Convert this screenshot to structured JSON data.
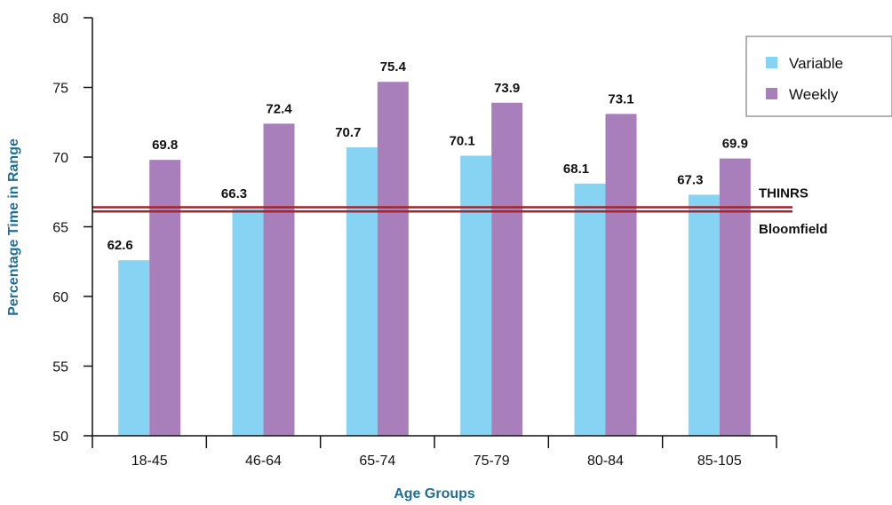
{
  "chart_data": {
    "type": "bar",
    "categories": [
      "18-45",
      "46-64",
      "65-74",
      "75-79",
      "80-84",
      "85-105"
    ],
    "series": [
      {
        "name": "Variable",
        "values": [
          62.6,
          66.3,
          70.7,
          70.1,
          68.1,
          67.3
        ],
        "color": "#87d3f3"
      },
      {
        "name": "Weekly",
        "values": [
          69.8,
          72.4,
          75.4,
          73.9,
          73.1,
          69.9
        ],
        "color": "#a87fba"
      }
    ],
    "data_labels": {
      "Variable": [
        "62.6",
        "66.3",
        "70.7",
        "70.1",
        "68.1",
        "67.3"
      ],
      "Weekly": [
        "69.8",
        "72.4",
        "75.4",
        "73.9",
        "73.1",
        "69.9"
      ]
    },
    "xlabel": "Age Groups",
    "ylabel": "Percentage Time in Range",
    "ylim": [
      50,
      80
    ],
    "yticks": [
      50,
      55,
      60,
      65,
      70,
      75,
      80
    ],
    "ytick_labels": [
      "50",
      "55",
      "60",
      "65",
      "70",
      "75",
      "80"
    ],
    "reference_lines": [
      {
        "label": "THINRS",
        "value": 66.4,
        "color": "#a3262a"
      },
      {
        "label": "Bloomfield",
        "value": 66.1,
        "color": "#a3262a"
      }
    ],
    "legend_position": "top-right",
    "grid": false
  }
}
